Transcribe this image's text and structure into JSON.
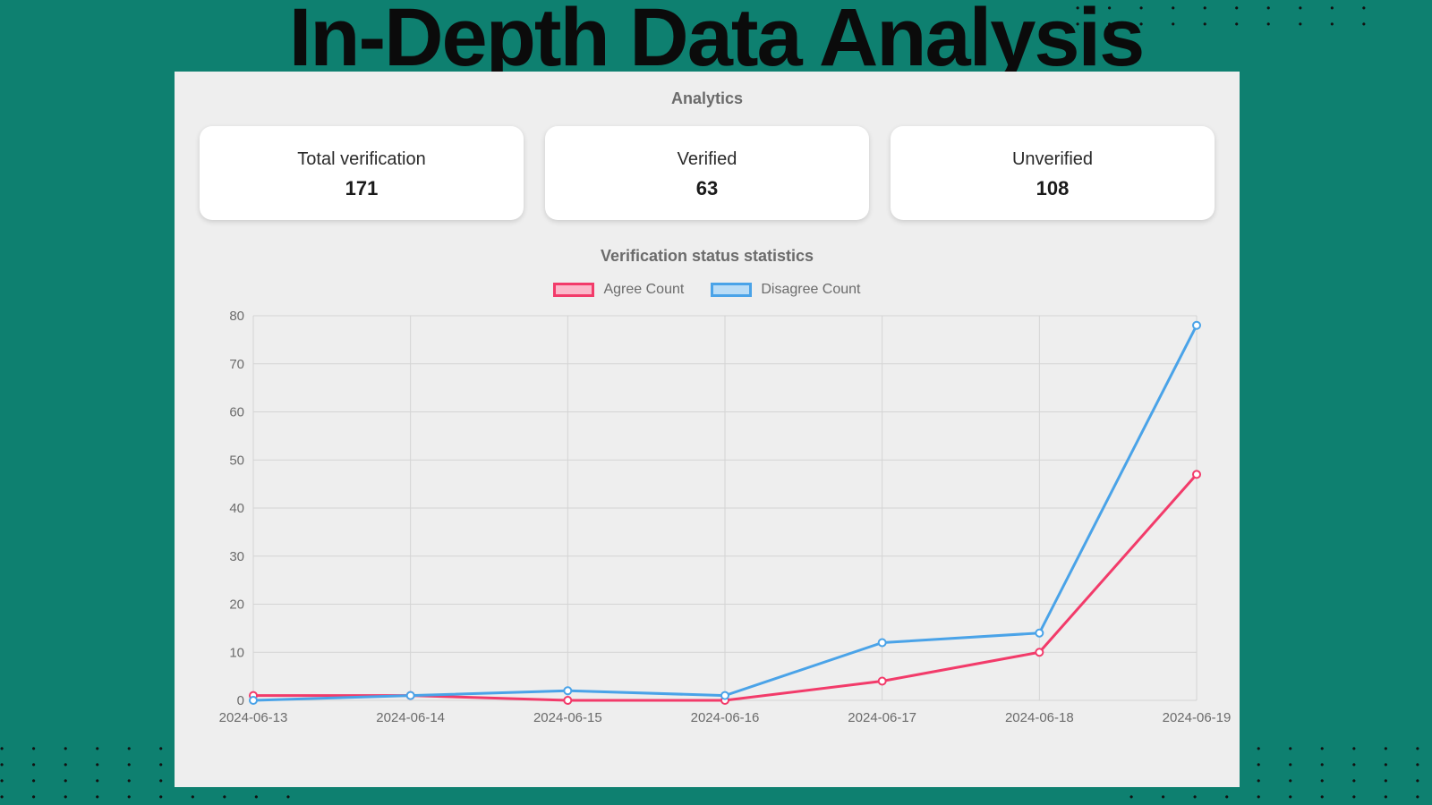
{
  "page": {
    "background_color": "#0e8070",
    "headline": "In-Depth Data Analysis",
    "headline_color": "#0b0b0b",
    "headline_fontsize": 92,
    "dot_color": "#111111"
  },
  "panel": {
    "title": "Analytics",
    "background_color": "#eeeeee",
    "chart_title": "Verification status statistics"
  },
  "cards": [
    {
      "label": "Total verification",
      "value": "171"
    },
    {
      "label": "Verified",
      "value": "63"
    },
    {
      "label": "Unverified",
      "value": "108"
    }
  ],
  "chart": {
    "type": "line",
    "x_labels": [
      "2024-06-13",
      "2024-06-14",
      "2024-06-15",
      "2024-06-16",
      "2024-06-17",
      "2024-06-18",
      "2024-06-19"
    ],
    "ylim": [
      0,
      80
    ],
    "ytick_step": 10,
    "grid_color": "#d4d4d4",
    "axis_color": "#6b6b6b",
    "background_color": "#eeeeee",
    "label_fontsize": 15,
    "line_width": 3,
    "marker_radius": 4,
    "marker_style": "circle",
    "series": [
      {
        "name": "Agree Count",
        "stroke": "#f23b6a",
        "fill": "#fbb8ca",
        "data": [
          1,
          1,
          0,
          0,
          4,
          10,
          47
        ]
      },
      {
        "name": "Disagree Count",
        "stroke": "#4aa3e8",
        "fill": "#b9dcf6",
        "data": [
          0,
          1,
          2,
          1,
          12,
          14,
          78
        ]
      }
    ]
  }
}
